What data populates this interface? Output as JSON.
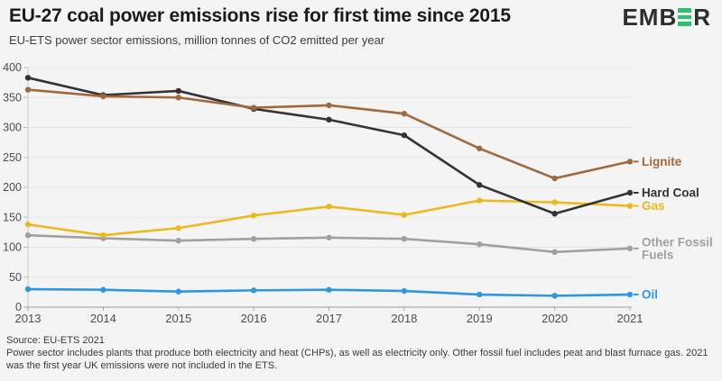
{
  "page": {
    "background_color": "#f4f4f4",
    "brand_green": "#29c36d",
    "grid_color": "#e3e3e3",
    "axis_color": "#aaaaaa",
    "tick_label_color": "#4d4d4d"
  },
  "header": {
    "title": "EU-27 coal power emissions rise for first time since 2015",
    "subtitle": "EU-ETS power sector emissions, million tonnes of CO2 emitted per year",
    "logo_prefix": "EMB",
    "logo_suffix": "R"
  },
  "chart_data": {
    "type": "line",
    "title": "EU-27 coal power emissions rise for first time since 2015",
    "subtitle": "EU-ETS power sector emissions, million tonnes of CO2 emitted per year",
    "xlabel": "",
    "ylabel": "million tonnes of CO2 emitted per year",
    "x": [
      2013,
      2014,
      2015,
      2016,
      2017,
      2018,
      2019,
      2020,
      2021
    ],
    "ylim": [
      0,
      400
    ],
    "ytick_step": 50,
    "yticks": [
      0,
      50,
      100,
      150,
      200,
      250,
      300,
      350,
      400
    ],
    "grid": true,
    "markers": true,
    "legend_position": "right-edge-labels",
    "series": [
      {
        "name": "Lignite",
        "color": "#a0683c",
        "label_lines": [
          "Lignite"
        ],
        "values": [
          363,
          352,
          350,
          333,
          337,
          323,
          265,
          215,
          243
        ]
      },
      {
        "name": "Hard Coal",
        "color": "#333333",
        "label_lines": [
          "Hard Coal"
        ],
        "values": [
          383,
          354,
          361,
          331,
          313,
          287,
          204,
          156,
          191
        ]
      },
      {
        "name": "Gas",
        "color": "#edb81a",
        "label_lines": [
          "Gas"
        ],
        "values": [
          138,
          120,
          132,
          153,
          168,
          154,
          178,
          175,
          169
        ]
      },
      {
        "name": "Other Fossil Fuels",
        "color": "#a0a0a0",
        "label_lines": [
          "Other Fossil",
          "Fuels"
        ],
        "values": [
          120,
          115,
          111,
          114,
          116,
          114,
          105,
          92,
          98
        ]
      },
      {
        "name": "Oil",
        "color": "#2f97dd",
        "label_lines": [
          "Oil"
        ],
        "values": [
          30,
          29,
          26,
          28,
          29,
          27,
          21,
          19,
          21
        ]
      }
    ]
  },
  "footer": {
    "source": "Source: EU-ETS 2021",
    "note": "Power sector includes plants that produce both electricity and heat (CHPs), as well as electricity only. Other fossil fuel includes peat and blast furnace gas. 2021 was the first year UK emissions were not included in the ETS."
  }
}
